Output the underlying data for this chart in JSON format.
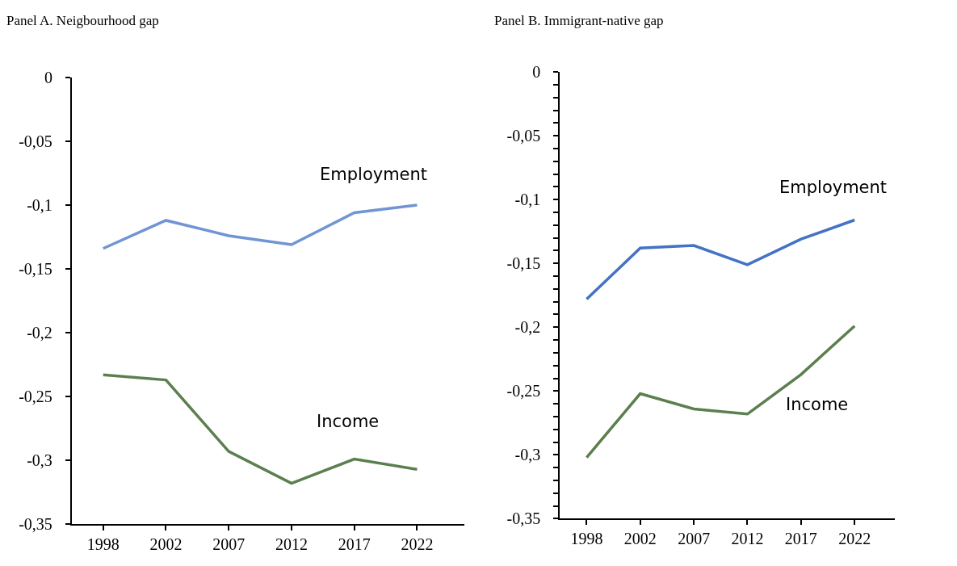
{
  "chart_data": [
    {
      "type": "line",
      "title": "Panel A. Neigbourhood gap",
      "categories": [
        "1998",
        "2002",
        "2007",
        "2012",
        "2017",
        "2022"
      ],
      "series": [
        {
          "name": "Employment",
          "color": "#7094d4",
          "values": [
            -0.134,
            -0.112,
            -0.124,
            -0.131,
            -0.106,
            -0.1
          ]
        },
        {
          "name": "Income",
          "color": "#5b7f4f",
          "values": [
            -0.233,
            -0.237,
            -0.293,
            -0.318,
            -0.299,
            -0.307
          ]
        }
      ],
      "ylim": [
        -0.35,
        0
      ],
      "yticks": [
        {
          "value": -0.35,
          "label": "-0,35"
        },
        {
          "value": -0.3,
          "label": "-0,3"
        },
        {
          "value": -0.25,
          "label": "-0,25"
        },
        {
          "value": -0.2,
          "label": "-0,2"
        },
        {
          "value": -0.15,
          "label": "-0,15"
        },
        {
          "value": -0.1,
          "label": "-0,1"
        },
        {
          "value": -0.05,
          "label": "-0,05"
        },
        0
      ],
      "legend": false,
      "marker": "none",
      "line_style": "solid"
    },
    {
      "type": "line",
      "title": "Panel B. Immigrant-native gap",
      "categories": [
        "1998",
        "2002",
        "2007",
        "2012",
        "2017",
        "2022"
      ],
      "series": [
        {
          "name": "Employment",
          "color": "#4472c4",
          "values": [
            -0.178,
            -0.138,
            -0.136,
            -0.151,
            -0.131,
            -0.116
          ]
        },
        {
          "name": "Income",
          "color": "#5b7f4f",
          "values": [
            -0.302,
            -0.252,
            -0.264,
            -0.268,
            -0.237,
            -0.199
          ]
        }
      ],
      "ylim": [
        -0.35,
        0
      ],
      "yticks": [
        {
          "value": -0.35,
          "label": "-0,35"
        },
        {
          "value": -0.34,
          "label": null
        },
        {
          "value": -0.33,
          "label": null
        },
        {
          "value": -0.32,
          "label": null
        },
        {
          "value": -0.31,
          "label": null
        },
        {
          "value": -0.3,
          "label": "-0,3"
        },
        {
          "value": -0.29,
          "label": null
        },
        {
          "value": -0.28,
          "label": null
        },
        {
          "value": -0.27,
          "label": null
        },
        {
          "value": -0.26,
          "label": null
        },
        {
          "value": -0.25,
          "label": "-0,25"
        },
        {
          "value": -0.24,
          "label": null
        },
        {
          "value": -0.23,
          "label": null
        },
        {
          "value": -0.22,
          "label": null
        },
        {
          "value": -0.21,
          "label": null
        },
        {
          "value": -0.2,
          "label": "-0,2"
        },
        {
          "value": -0.19,
          "label": null
        },
        {
          "value": -0.18,
          "label": null
        },
        {
          "value": -0.17,
          "label": null
        },
        {
          "value": -0.16,
          "label": null
        },
        {
          "value": -0.15,
          "label": "-0,15"
        },
        {
          "value": -0.14,
          "label": null
        },
        {
          "value": -0.13,
          "label": null
        },
        {
          "value": -0.12,
          "label": null
        },
        {
          "value": -0.11,
          "label": null
        },
        {
          "value": -0.1,
          "label": "-0,1"
        },
        {
          "value": -0.09,
          "label": null
        },
        {
          "value": -0.08,
          "label": null
        },
        {
          "value": -0.07,
          "label": null
        },
        {
          "value": -0.06,
          "label": null
        },
        {
          "value": -0.05,
          "label": "-0,05"
        },
        {
          "value": -0.04,
          "label": null
        },
        {
          "value": -0.03,
          "label": null
        },
        {
          "value": -0.02,
          "label": null
        },
        {
          "value": -0.01,
          "label": null
        },
        0
      ],
      "legend": false,
      "marker": "none",
      "line_style": "solid"
    }
  ]
}
